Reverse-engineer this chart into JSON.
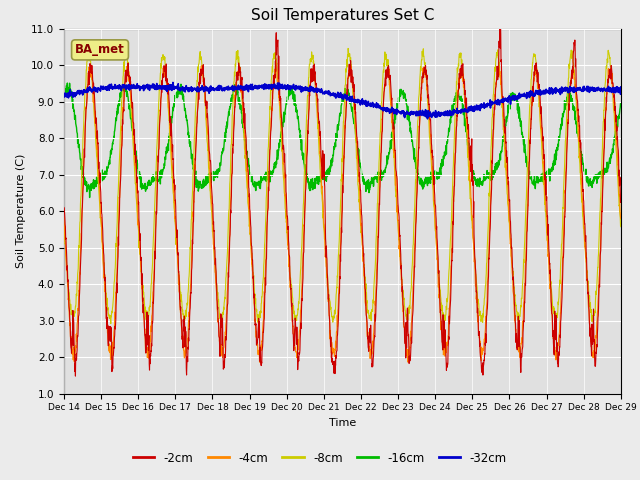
{
  "title": "Soil Temperatures Set C",
  "xlabel": "Time",
  "ylabel": "Soil Temperature (C)",
  "ylim": [
    1.0,
    11.0
  ],
  "yticks": [
    1.0,
    2.0,
    3.0,
    4.0,
    5.0,
    6.0,
    7.0,
    8.0,
    9.0,
    10.0,
    11.0
  ],
  "bg_color": "#ebebeb",
  "plot_bg_color": "#e0e0e0",
  "colors": {
    "2cm": "#cc0000",
    "4cm": "#ff8800",
    "8cm": "#cccc00",
    "16cm": "#00bb00",
    "32cm": "#0000cc"
  },
  "annotation_text": "BA_met",
  "annotation_fg": "#880000",
  "annotation_bg": "#eeee88",
  "x_start": 0,
  "x_end": 15,
  "xtick_positions": [
    0,
    1,
    2,
    3,
    4,
    5,
    6,
    7,
    8,
    9,
    10,
    11,
    12,
    13,
    14,
    15
  ],
  "xtick_labels": [
    "Dec 14",
    "Dec 15",
    "Dec 16",
    "Dec 17",
    "Dec 18",
    "Dec 19",
    "Dec 20",
    "Dec 21",
    "Dec 22",
    "Dec 23",
    "Dec 24",
    "Dec 25",
    "Dec 26",
    "Dec 27",
    "Dec 28",
    "Dec 29"
  ],
  "legend_labels": [
    "-2cm",
    "-4cm",
    "-8cm",
    "-16cm",
    "-32cm"
  ]
}
